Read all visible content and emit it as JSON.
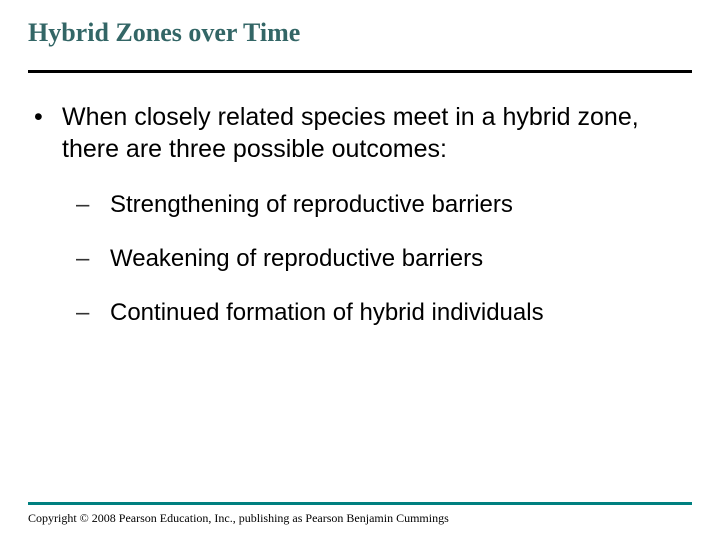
{
  "colors": {
    "title_color": "#336666",
    "top_rule_color": "#000000",
    "bottom_rule_color": "#008080",
    "body_text_color": "#000000",
    "background": "#ffffff"
  },
  "typography": {
    "title_font": "Times New Roman",
    "title_fontsize_pt": 26,
    "title_weight": "bold",
    "body_font": "Arial",
    "body_fontsize_pt": 25,
    "sub_fontsize_pt": 24,
    "copyright_font": "Times New Roman",
    "copyright_fontsize_pt": 12
  },
  "title": "Hybrid Zones over Time",
  "main_bullet": {
    "marker": "•",
    "text": "When closely related species meet in a hybrid zone, there are three possible outcomes:"
  },
  "sub_bullets": {
    "marker": "–",
    "items": [
      "Strengthening of reproductive barriers",
      "Weakening of reproductive barriers",
      "Continued formation of hybrid individuals"
    ]
  },
  "copyright": "Copyright © 2008 Pearson Education, Inc., publishing as Pearson Benjamin Cummings"
}
